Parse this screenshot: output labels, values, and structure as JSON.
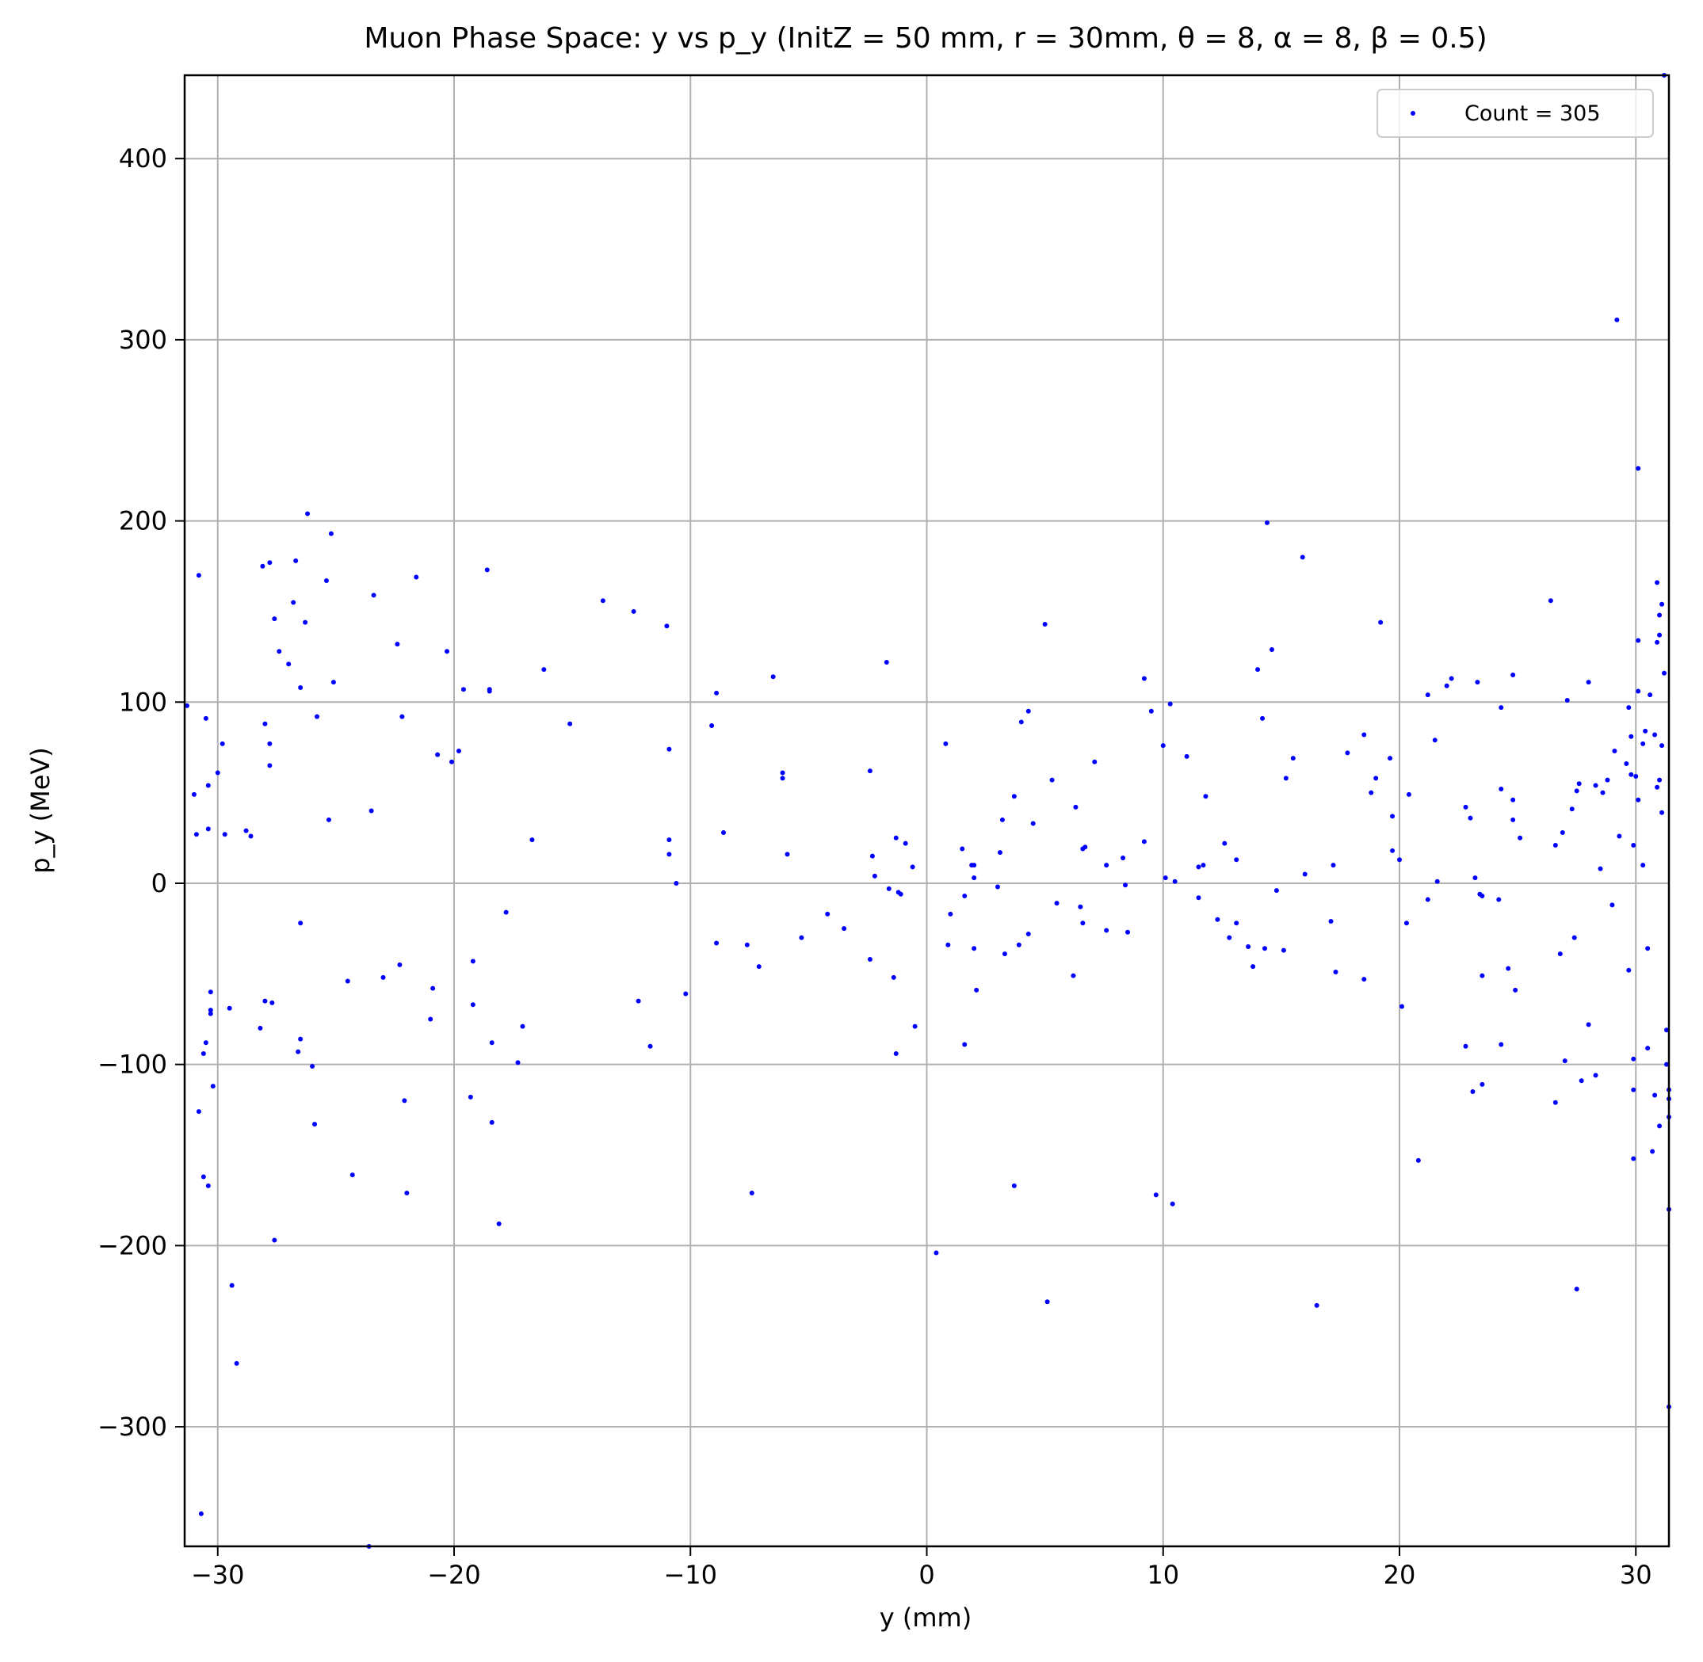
{
  "chart_data": {
    "type": "scatter",
    "title": "Muon Phase Space: y vs p_y (InitZ = 50 mm, r = 30mm, θ = 8, α = 8, β = 0.5)",
    "xlabel": "y (mm)",
    "ylabel": "p_y (MeV)",
    "xlim": [
      -31.4,
      31.4
    ],
    "ylim": [
      -366,
      446
    ],
    "xticks": [
      -30,
      -20,
      -10,
      0,
      10,
      20,
      30
    ],
    "yticks": [
      -300,
      -200,
      -100,
      0,
      100,
      200,
      300,
      400
    ],
    "xtick_labels": [
      "−30",
      "−20",
      "−10",
      "0",
      "10",
      "20",
      "30"
    ],
    "ytick_labels": [
      "−300",
      "−200",
      "−100",
      "0",
      "100",
      "200",
      "300",
      "400"
    ],
    "grid": true,
    "legend_position": "top-right",
    "marker_color": "#0000ff",
    "series": [
      {
        "name": "Count = 305",
        "points": [
          [
            -31.3,
            98
          ],
          [
            -31.0,
            49
          ],
          [
            -30.9,
            27
          ],
          [
            -30.8,
            170
          ],
          [
            -30.8,
            -126
          ],
          [
            -30.7,
            -348
          ],
          [
            -30.6,
            -94
          ],
          [
            -30.6,
            -162
          ],
          [
            -30.5,
            91
          ],
          [
            -30.5,
            -88
          ],
          [
            -30.4,
            54
          ],
          [
            -30.4,
            30
          ],
          [
            -30.4,
            -167
          ],
          [
            -30.3,
            -60
          ],
          [
            -30.3,
            -70
          ],
          [
            -30.3,
            -72
          ],
          [
            -30.2,
            -112
          ],
          [
            -30.0,
            61
          ],
          [
            -29.8,
            77
          ],
          [
            -29.7,
            27
          ],
          [
            -29.5,
            -69
          ],
          [
            -29.4,
            -222
          ],
          [
            -29.2,
            -265
          ],
          [
            -28.8,
            29
          ],
          [
            -28.6,
            26
          ],
          [
            -28.2,
            -80
          ],
          [
            -28.1,
            175
          ],
          [
            -28.0,
            88
          ],
          [
            -28.0,
            -65
          ],
          [
            -27.8,
            177
          ],
          [
            -27.8,
            77
          ],
          [
            -27.8,
            65
          ],
          [
            -27.7,
            -66
          ],
          [
            -27.6,
            146
          ],
          [
            -27.6,
            -197
          ],
          [
            -27.4,
            128
          ],
          [
            -27.0,
            121
          ],
          [
            -26.8,
            155
          ],
          [
            -26.7,
            178
          ],
          [
            -26.5,
            108
          ],
          [
            -26.5,
            -22
          ],
          [
            -26.5,
            -86
          ],
          [
            -26.6,
            -93
          ],
          [
            -26.3,
            144
          ],
          [
            -26.2,
            204
          ],
          [
            -26.0,
            -101
          ],
          [
            -25.9,
            -133
          ],
          [
            -25.8,
            92
          ],
          [
            -25.4,
            167
          ],
          [
            -25.3,
            35
          ],
          [
            -25.2,
            193
          ],
          [
            -25.1,
            111
          ],
          [
            -24.5,
            -54
          ],
          [
            -24.3,
            -161
          ],
          [
            -23.6,
            -366
          ],
          [
            -23.5,
            40
          ],
          [
            -23.4,
            159
          ],
          [
            -23.0,
            -52
          ],
          [
            -22.4,
            132
          ],
          [
            -22.3,
            -45
          ],
          [
            -22.2,
            92
          ],
          [
            -22.1,
            -120
          ],
          [
            -22.0,
            -171
          ],
          [
            -21.6,
            169
          ],
          [
            -21.0,
            -75
          ],
          [
            -20.9,
            -58
          ],
          [
            -20.7,
            71
          ],
          [
            -20.3,
            128
          ],
          [
            -20.1,
            67
          ],
          [
            -19.8,
            73
          ],
          [
            -19.6,
            107
          ],
          [
            -19.3,
            -118
          ],
          [
            -19.2,
            -43
          ],
          [
            -19.2,
            -67
          ],
          [
            -18.6,
            173
          ],
          [
            -18.5,
            107
          ],
          [
            -18.5,
            106
          ],
          [
            -18.4,
            -88
          ],
          [
            -18.4,
            -132
          ],
          [
            -18.1,
            -188
          ],
          [
            -17.8,
            -16
          ],
          [
            -17.3,
            -99
          ],
          [
            -17.1,
            -79
          ],
          [
            -16.7,
            24
          ],
          [
            -16.2,
            118
          ],
          [
            -15.1,
            88
          ],
          [
            -13.7,
            156
          ],
          [
            -12.4,
            150
          ],
          [
            -12.2,
            -65
          ],
          [
            -11.7,
            -90
          ],
          [
            -11.0,
            142
          ],
          [
            -10.9,
            16
          ],
          [
            -10.9,
            24
          ],
          [
            -10.9,
            74
          ],
          [
            -10.6,
            0
          ],
          [
            -10.2,
            -61
          ],
          [
            -9.1,
            87
          ],
          [
            -8.9,
            105
          ],
          [
            -8.9,
            -33
          ],
          [
            -8.6,
            28
          ],
          [
            -7.6,
            -34
          ],
          [
            -7.4,
            -171
          ],
          [
            -7.1,
            -46
          ],
          [
            -6.5,
            114
          ],
          [
            -6.1,
            61
          ],
          [
            -6.1,
            58
          ],
          [
            -5.9,
            16
          ],
          [
            -5.3,
            -30
          ],
          [
            -4.2,
            -17
          ],
          [
            -3.5,
            -25
          ],
          [
            -2.4,
            62
          ],
          [
            -2.4,
            -42
          ],
          [
            -2.3,
            15
          ],
          [
            -2.2,
            4
          ],
          [
            -1.7,
            122
          ],
          [
            -1.6,
            -3
          ],
          [
            -1.4,
            -52
          ],
          [
            -1.3,
            -94
          ],
          [
            -1.3,
            25
          ],
          [
            -1.2,
            -5
          ],
          [
            -1.1,
            -6
          ],
          [
            -0.9,
            22
          ],
          [
            -0.6,
            9
          ],
          [
            -0.5,
            -79
          ],
          [
            0.4,
            -204
          ],
          [
            0.8,
            77
          ],
          [
            0.9,
            -34
          ],
          [
            1.0,
            -17
          ],
          [
            1.5,
            19
          ],
          [
            1.6,
            -7
          ],
          [
            1.6,
            -89
          ],
          [
            1.9,
            10
          ],
          [
            2.0,
            10
          ],
          [
            2.0,
            3
          ],
          [
            2.0,
            -36
          ],
          [
            2.1,
            -59
          ],
          [
            3.0,
            -2
          ],
          [
            3.1,
            17
          ],
          [
            3.2,
            35
          ],
          [
            3.3,
            -39
          ],
          [
            3.7,
            48
          ],
          [
            3.7,
            -167
          ],
          [
            3.9,
            -34
          ],
          [
            4.0,
            89
          ],
          [
            4.3,
            95
          ],
          [
            4.3,
            -28
          ],
          [
            4.5,
            33
          ],
          [
            5.0,
            143
          ],
          [
            5.1,
            -231
          ],
          [
            5.3,
            57
          ],
          [
            5.5,
            -11
          ],
          [
            6.2,
            -51
          ],
          [
            6.3,
            42
          ],
          [
            6.5,
            -13
          ],
          [
            6.6,
            -22
          ],
          [
            6.6,
            19
          ],
          [
            6.7,
            20
          ],
          [
            7.1,
            67
          ],
          [
            7.6,
            10
          ],
          [
            7.6,
            -26
          ],
          [
            8.3,
            14
          ],
          [
            8.4,
            -1
          ],
          [
            8.5,
            -27
          ],
          [
            9.2,
            23
          ],
          [
            9.2,
            113
          ],
          [
            9.5,
            95
          ],
          [
            9.7,
            -172
          ],
          [
            10.0,
            76
          ],
          [
            10.1,
            3
          ],
          [
            10.3,
            99
          ],
          [
            10.4,
            -177
          ],
          [
            10.5,
            1
          ],
          [
            11.0,
            70
          ],
          [
            11.5,
            -8
          ],
          [
            11.5,
            9
          ],
          [
            11.7,
            10
          ],
          [
            11.8,
            48
          ],
          [
            12.3,
            -20
          ],
          [
            12.6,
            22
          ],
          [
            12.8,
            -30
          ],
          [
            13.1,
            13
          ],
          [
            13.1,
            -22
          ],
          [
            13.6,
            -35
          ],
          [
            13.8,
            -46
          ],
          [
            14.0,
            118
          ],
          [
            14.2,
            91
          ],
          [
            14.3,
            -36
          ],
          [
            14.4,
            199
          ],
          [
            14.6,
            129
          ],
          [
            14.8,
            -4
          ],
          [
            15.1,
            -37
          ],
          [
            15.2,
            58
          ],
          [
            15.5,
            69
          ],
          [
            15.9,
            180
          ],
          [
            16.0,
            5
          ],
          [
            16.5,
            -233
          ],
          [
            17.1,
            -21
          ],
          [
            17.2,
            10
          ],
          [
            17.3,
            -49
          ],
          [
            17.8,
            72
          ],
          [
            18.5,
            82
          ],
          [
            18.5,
            -53
          ],
          [
            18.8,
            50
          ],
          [
            19.0,
            58
          ],
          [
            19.2,
            144
          ],
          [
            19.6,
            69
          ],
          [
            19.7,
            37
          ],
          [
            19.7,
            18
          ],
          [
            20.0,
            13
          ],
          [
            20.1,
            -68
          ],
          [
            20.3,
            -22
          ],
          [
            20.4,
            49
          ],
          [
            20.8,
            -153
          ],
          [
            21.2,
            104
          ],
          [
            21.2,
            -9
          ],
          [
            21.5,
            79
          ],
          [
            21.6,
            1
          ],
          [
            22.0,
            109
          ],
          [
            22.2,
            113
          ],
          [
            22.8,
            42
          ],
          [
            22.8,
            -90
          ],
          [
            23.0,
            36
          ],
          [
            23.1,
            -115
          ],
          [
            23.2,
            3
          ],
          [
            23.3,
            111
          ],
          [
            23.4,
            -6
          ],
          [
            23.5,
            -7
          ],
          [
            23.5,
            -51
          ],
          [
            23.5,
            -111
          ],
          [
            24.2,
            -9
          ],
          [
            24.3,
            97
          ],
          [
            24.3,
            52
          ],
          [
            24.3,
            -89
          ],
          [
            24.6,
            -47
          ],
          [
            24.8,
            35
          ],
          [
            24.8,
            46
          ],
          [
            24.8,
            115
          ],
          [
            24.9,
            -59
          ],
          [
            25.1,
            25
          ],
          [
            26.4,
            156
          ],
          [
            26.6,
            21
          ],
          [
            26.6,
            -121
          ],
          [
            26.8,
            -39
          ],
          [
            26.9,
            28
          ],
          [
            27.0,
            -98
          ],
          [
            27.1,
            101
          ],
          [
            27.3,
            41
          ],
          [
            27.4,
            -30
          ],
          [
            27.5,
            51
          ],
          [
            27.5,
            -224
          ],
          [
            27.6,
            55
          ],
          [
            27.7,
            -109
          ],
          [
            28.0,
            111
          ],
          [
            28.0,
            -78
          ],
          [
            28.3,
            54
          ],
          [
            28.3,
            -106
          ],
          [
            28.5,
            8
          ],
          [
            28.6,
            50
          ],
          [
            28.8,
            57
          ],
          [
            29.0,
            -12
          ],
          [
            29.1,
            73
          ],
          [
            29.2,
            311
          ],
          [
            29.3,
            26
          ],
          [
            29.6,
            66
          ],
          [
            29.7,
            97
          ],
          [
            29.7,
            -48
          ],
          [
            29.8,
            81
          ],
          [
            29.8,
            60
          ],
          [
            29.9,
            21
          ],
          [
            29.9,
            -97
          ],
          [
            29.9,
            -114
          ],
          [
            29.9,
            -152
          ],
          [
            30.0,
            59
          ],
          [
            30.1,
            229
          ],
          [
            30.1,
            134
          ],
          [
            30.1,
            106
          ],
          [
            30.1,
            46
          ],
          [
            30.3,
            77
          ],
          [
            30.3,
            10
          ],
          [
            30.4,
            84
          ],
          [
            30.5,
            -91
          ],
          [
            30.5,
            -36
          ],
          [
            30.6,
            104
          ],
          [
            30.7,
            -148
          ],
          [
            30.8,
            82
          ],
          [
            30.8,
            -117
          ],
          [
            30.9,
            166
          ],
          [
            30.9,
            133
          ],
          [
            30.9,
            53
          ],
          [
            31.0,
            148
          ],
          [
            31.0,
            137
          ],
          [
            31.0,
            57
          ],
          [
            31.0,
            -134
          ],
          [
            31.1,
            39
          ],
          [
            31.1,
            154
          ],
          [
            31.1,
            76
          ],
          [
            31.2,
            116
          ],
          [
            31.2,
            446
          ],
          [
            31.3,
            -100
          ],
          [
            31.3,
            -81
          ],
          [
            31.4,
            -119
          ],
          [
            31.4,
            -129
          ],
          [
            31.4,
            -180
          ],
          [
            31.4,
            -289
          ],
          [
            31.4,
            -114
          ]
        ]
      }
    ]
  }
}
